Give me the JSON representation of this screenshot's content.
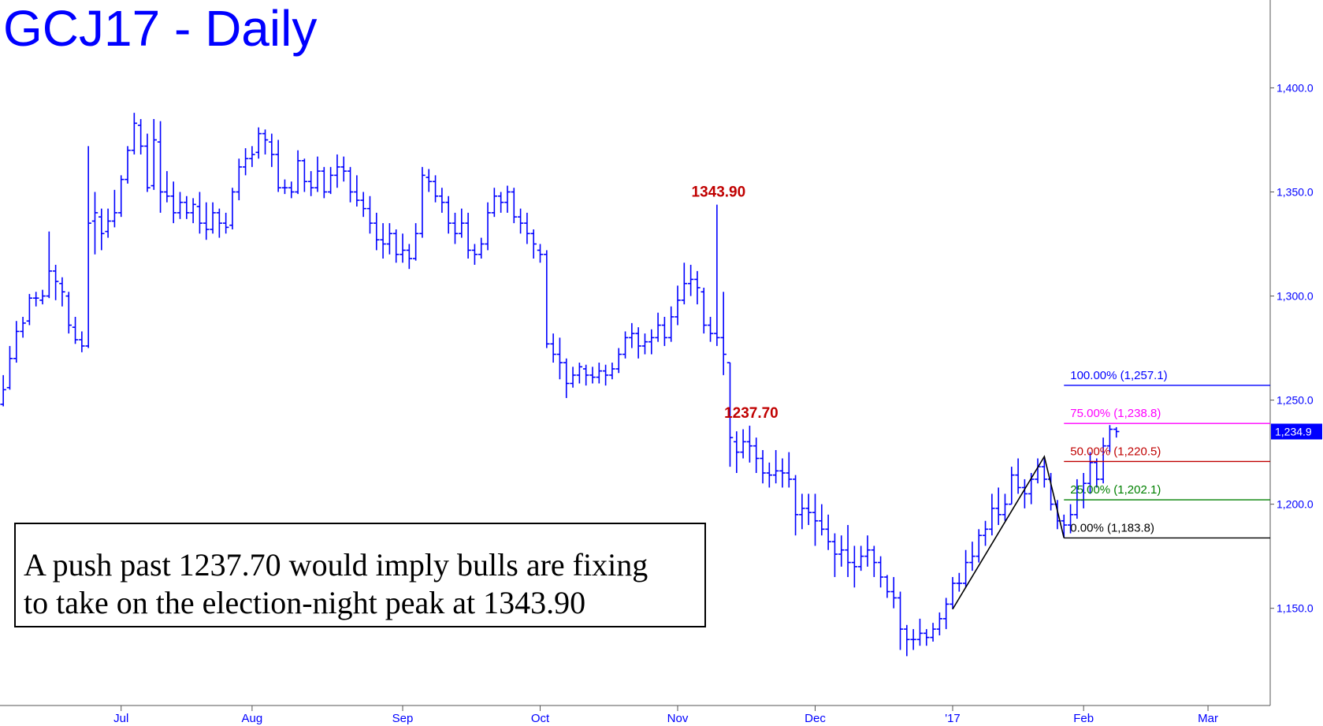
{
  "chart_data": {
    "type": "ohlc",
    "title": "GCJ17 - Daily",
    "color": "#0000ff",
    "categories": [
      null,
      null,
      null,
      null,
      null,
      null,
      null,
      null,
      null,
      null,
      null,
      null,
      null,
      null,
      null,
      null,
      null,
      null,
      "Jul",
      null,
      null,
      null,
      null,
      null,
      null,
      null,
      null,
      null,
      null,
      null,
      null,
      null,
      null,
      null,
      null,
      null,
      null,
      null,
      "Aug",
      null,
      null,
      null,
      null,
      null,
      null,
      null,
      null,
      null,
      null,
      null,
      null,
      null,
      null,
      null,
      null,
      null,
      null,
      null,
      null,
      null,
      null,
      "Sep",
      null,
      null,
      null,
      null,
      null,
      null,
      null,
      null,
      null,
      null,
      null,
      null,
      null,
      null,
      null,
      null,
      null,
      null,
      null,
      null,
      "Oct",
      null,
      null,
      null,
      null,
      null,
      null,
      null,
      null,
      null,
      null,
      null,
      null,
      null,
      null,
      null,
      null,
      null,
      null,
      null,
      null,
      "Nov",
      null,
      null,
      null,
      null,
      null,
      null,
      null,
      null,
      null,
      null,
      null,
      null,
      null,
      null,
      null,
      null,
      null,
      null,
      null,
      null,
      "Dec",
      null,
      null,
      null,
      null,
      null,
      null,
      null,
      null,
      null,
      null,
      null,
      null,
      null,
      null,
      null,
      null,
      null,
      null,
      null,
      null,
      "'17",
      null,
      null,
      null,
      null,
      null,
      null,
      null,
      null,
      null,
      null,
      null,
      null,
      null,
      null,
      null,
      null,
      null,
      null,
      null,
      "Feb",
      null,
      null,
      null,
      null,
      null,
      null,
      null,
      null,
      null,
      null,
      null,
      null,
      null,
      null,
      null,
      null,
      null,
      null,
      "Mar",
      null,
      null,
      null,
      null,
      null,
      null,
      null,
      null,
      null
    ],
    "open": [
      1248,
      1256,
      1270,
      1283,
      1288,
      1299,
      1298,
      1300,
      1312,
      1306,
      1300,
      1285,
      1279,
      1276,
      1336,
      1338,
      1331,
      1336,
      1340,
      1356,
      1370,
      1382,
      1372,
      1353,
      1374,
      1350,
      1348,
      1340,
      1345,
      1340,
      1343,
      1335,
      1332,
      1340,
      1335,
      1334,
      1350,
      1362,
      1366,
      1369,
      1378,
      1374,
      1368,
      1352,
      1352,
      1350,
      1365,
      1355,
      1352,
      1360,
      1350,
      1358,
      1362,
      1360,
      1350,
      1346,
      1342,
      1335,
      1327,
      1325,
      1330,
      1320,
      1322,
      1318,
      1330,
      1357,
      1355,
      1348,
      1345,
      1335,
      1330,
      1335,
      1322,
      1320,
      1325,
      1340,
      1348,
      1345,
      1350,
      1338,
      1335,
      1330,
      1322,
      1320,
      1277,
      1272,
      1268,
      1258,
      1262,
      1265,
      1262,
      1261,
      1264,
      1262,
      1265,
      1272,
      1280,
      1282,
      1276,
      1278,
      1280,
      1286,
      1280,
      1290,
      1298,
      1306,
      1308,
      1302,
      1286,
      1282,
      1280,
      1268,
      1230,
      1225,
      1230,
      1228,
      1222,
      1215,
      1214,
      1216,
      1215,
      1212,
      1195,
      1198,
      1196,
      1192,
      1188,
      1182,
      1176,
      1178,
      1172,
      1170,
      1175,
      1178,
      1172,
      1165,
      1158,
      1155,
      1140,
      1135,
      1135,
      1138,
      1136,
      1140,
      1145,
      1152,
      1162,
      1162,
      1172,
      1175,
      1185,
      1188,
      1198,
      1195,
      1200,
      1214,
      1208,
      1205,
      1212,
      1218,
      1212,
      1200,
      1192,
      1190,
      1195,
      1202,
      1210,
      1220,
      1212,
      1228,
      1236,
      null,
      null,
      null,
      null,
      null,
      null,
      null,
      null,
      null,
      null,
      null,
      null,
      null,
      null,
      null,
      null,
      null,
      null,
      null,
      null,
      null,
      null,
      null
    ],
    "high": [
      1262,
      1276,
      1288,
      1290,
      1301,
      1302,
      1303,
      1331,
      1315,
      1309,
      1302,
      1290,
      1283,
      1372,
      1350,
      1342,
      1342,
      1351,
      1358,
      1372,
      1388,
      1385,
      1378,
      1385,
      1384,
      1360,
      1355,
      1350,
      1348,
      1347,
      1350,
      1345,
      1345,
      1342,
      1340,
      1352,
      1366,
      1371,
      1372,
      1381,
      1380,
      1378,
      1375,
      1356,
      1355,
      1370,
      1366,
      1360,
      1367,
      1362,
      1362,
      1368,
      1367,
      1362,
      1358,
      1350,
      1348,
      1340,
      1335,
      1335,
      1332,
      1330,
      1325,
      1335,
      1362,
      1361,
      1358,
      1352,
      1348,
      1340,
      1342,
      1340,
      1325,
      1328,
      1345,
      1352,
      1350,
      1353,
      1352,
      1342,
      1340,
      1332,
      1325,
      1322,
      1282,
      1280,
      1270,
      1266,
      1268,
      1267,
      1266,
      1268,
      1267,
      1268,
      1275,
      1283,
      1287,
      1285,
      1282,
      1284,
      1292,
      1290,
      1295,
      1305,
      1316,
      1315,
      1312,
      1304,
      1290,
      1343.9,
      1302,
      1268,
      1235,
      1236,
      1237.7,
      1232,
      1226,
      1220,
      1226,
      1222,
      1225,
      1214,
      1205,
      1205,
      1205,
      1200,
      1195,
      1186,
      1185,
      1190,
      1180,
      1180,
      1185,
      1180,
      1175,
      1166,
      1165,
      1158,
      1142,
      1140,
      1145,
      1140,
      1143,
      1148,
      1155,
      1165,
      1167,
      1178,
      1182,
      1188,
      1192,
      1205,
      1208,
      1205,
      1218,
      1222,
      1212,
      1215,
      1222,
      1222.9,
      1215,
      1202,
      1195,
      1200,
      1212,
      1215,
      1225,
      1222,
      1232,
      1238,
      1237,
      null,
      null,
      null,
      null,
      null,
      null,
      null,
      null,
      null,
      null,
      null,
      null,
      null,
      null,
      null,
      null,
      null,
      null,
      null,
      null,
      null,
      null,
      null
    ],
    "low": [
      1247,
      1255,
      1268,
      1280,
      1286,
      1295,
      1296,
      1299,
      1298,
      1295,
      1282,
      1277,
      1273,
      1275,
      1320,
      1322,
      1328,
      1333,
      1338,
      1354,
      1368,
      1368,
      1350,
      1351,
      1340,
      1345,
      1335,
      1337,
      1337,
      1335,
      1330,
      1327,
      1330,
      1328,
      1330,
      1332,
      1346,
      1358,
      1362,
      1366,
      1368,
      1362,
      1350,
      1349,
      1347,
      1349,
      1350,
      1348,
      1350,
      1347,
      1349,
      1352,
      1355,
      1345,
      1343,
      1338,
      1330,
      1322,
      1318,
      1320,
      1316,
      1316,
      1313,
      1317,
      1328,
      1350,
      1345,
      1340,
      1330,
      1325,
      1328,
      1318,
      1315,
      1318,
      1322,
      1338,
      1340,
      1340,
      1335,
      1330,
      1325,
      1318,
      1316,
      1275,
      1268,
      1260,
      1251,
      1256,
      1258,
      1257,
      1258,
      1258,
      1257,
      1260,
      1263,
      1270,
      1275,
      1270,
      1272,
      1272,
      1278,
      1276,
      1278,
      1286,
      1296,
      1300,
      1296,
      1282,
      1278,
      1276,
      1262,
      1218,
      1215,
      1222,
      1220,
      1215,
      1210,
      1208,
      1210,
      1208,
      1208,
      1185,
      1188,
      1190,
      1180,
      1185,
      1178,
      1165,
      1170,
      1165,
      1160,
      1168,
      1170,
      1165,
      1160,
      1155,
      1150,
      1130,
      1127,
      1130,
      1132,
      1132,
      1134,
      1137,
      1140,
      1149.6,
      1158,
      1160,
      1168,
      1172,
      1180,
      1185,
      1190,
      1192,
      1200,
      1205,
      1198,
      1200,
      1210,
      1208,
      1197,
      1188,
      1183.8,
      1186,
      1193,
      1198,
      1205,
      1208,
      1210,
      1225,
      1232,
      null,
      null,
      null,
      null,
      null,
      null,
      null,
      null,
      null,
      null,
      null,
      null,
      null,
      null,
      null,
      null,
      null,
      null,
      null,
      null,
      null,
      null,
      null
    ],
    "close": [
      1255,
      1270,
      1283,
      1287,
      1299,
      1299,
      1300,
      1312,
      1307,
      1302,
      1286,
      1279,
      1276,
      1335,
      1340,
      1330,
      1336,
      1340,
      1356,
      1370,
      1383,
      1372,
      1352,
      1375,
      1350,
      1348,
      1340,
      1345,
      1340,
      1344,
      1335,
      1332,
      1340,
      1335,
      1333,
      1350,
      1362,
      1366,
      1368,
      1378,
      1375,
      1368,
      1352,
      1352,
      1350,
      1365,
      1355,
      1352,
      1360,
      1350,
      1358,
      1362,
      1360,
      1350,
      1346,
      1342,
      1335,
      1327,
      1325,
      1330,
      1320,
      1322,
      1318,
      1330,
      1358,
      1355,
      1348,
      1345,
      1335,
      1330,
      1335,
      1322,
      1320,
      1325,
      1340,
      1348,
      1345,
      1350,
      1338,
      1335,
      1330,
      1325,
      1320,
      1277,
      1272,
      1268,
      1258,
      1262,
      1266,
      1262,
      1261,
      1264,
      1262,
      1265,
      1272,
      1280,
      1282,
      1276,
      1278,
      1280,
      1286,
      1280,
      1290,
      1298,
      1306,
      1308,
      1304,
      1286,
      1282,
      1280,
      1272,
      1232,
      1225,
      1230,
      1228,
      1222,
      1215,
      1214,
      1216,
      1215,
      1212,
      1195,
      1198,
      1196,
      1192,
      1188,
      1182,
      1176,
      1178,
      1172,
      1170,
      1175,
      1178,
      1172,
      1165,
      1158,
      1155,
      1140,
      1135,
      1135,
      1138,
      1136,
      1140,
      1145,
      1152,
      1162,
      1162,
      1172,
      1175,
      1185,
      1188,
      1198,
      1195,
      1200,
      1214,
      1208,
      1205,
      1212,
      1218,
      1212,
      1200,
      1192,
      1190,
      1195,
      1202,
      1210,
      1220,
      1212,
      1228,
      1236,
      1234.9,
      null,
      null,
      null,
      null,
      null,
      null,
      null,
      null,
      null,
      null,
      null,
      null,
      null,
      null,
      null,
      null,
      null,
      null,
      null,
      null,
      null,
      null,
      null
    ],
    "ylim": [
      1103.3,
      1442.2
    ],
    "yticks": [
      {
        "value": 1150,
        "label": "1,150.0"
      },
      {
        "value": 1200,
        "label": "1,200.0"
      },
      {
        "value": 1250,
        "label": "1,250.0"
      },
      {
        "value": 1300,
        "label": "1,300.0"
      },
      {
        "value": 1350,
        "label": "1,350.0"
      },
      {
        "value": 1400,
        "label": "1,400.0"
      }
    ],
    "last_price": {
      "value": 1234.9,
      "label": "1,234.9"
    },
    "annotations": [
      {
        "text": "1343.90",
        "x": 109,
        "value": 1343.9
      },
      {
        "text": "1237.70",
        "x": 114,
        "value": 1237.7
      }
    ],
    "pattern": {
      "color": "#000000",
      "x": [
        145,
        159,
        162
      ],
      "values": [
        1149.6,
        1222.9,
        1183.8
      ]
    },
    "fib_levels": [
      {
        "label": "100.00% (1,257.1)",
        "value": 1257.1,
        "color": "#0000ff"
      },
      {
        "label": "75.00% (1,238.8)",
        "value": 1238.8,
        "color": "#ff00ff"
      },
      {
        "label": "50.00% (1,220.5)",
        "value": 1220.5,
        "color": "#c00000"
      },
      {
        "label": "25.00% (1,202.1)",
        "value": 1202.1,
        "color": "#008000"
      },
      {
        "label": "0.00% (1,183.8)",
        "value": 1183.8,
        "color": "#000000"
      }
    ],
    "note": [
      "A push past 1237.70 would imply bulls are fixing",
      "to take on the election-night peak at 1343.90"
    ]
  }
}
